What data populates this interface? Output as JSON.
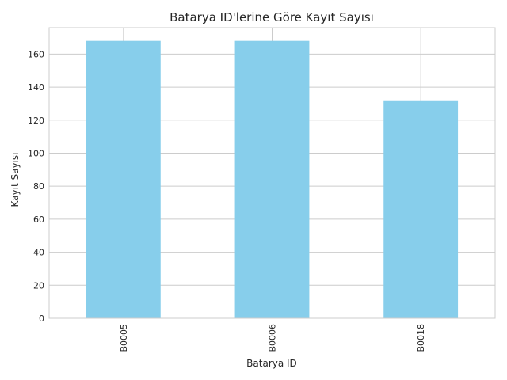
{
  "chart_data": {
    "type": "bar",
    "title": "Batarya ID'lerine Göre Kayıt Sayısı",
    "xlabel": "Batarya ID",
    "ylabel": "Kayıt Sayısı",
    "categories": [
      "B0005",
      "B0006",
      "B0018"
    ],
    "values": [
      168,
      168,
      132
    ],
    "ylim": [
      0,
      176
    ],
    "yticks": [
      0,
      20,
      40,
      60,
      80,
      100,
      120,
      140,
      160
    ],
    "ytick_labels": [
      "0",
      "20",
      "40",
      "60",
      "80",
      "100",
      "120",
      "140",
      "160"
    ],
    "grid": true,
    "legend": "none",
    "bar_color": "#87ceeb",
    "grid_color": "#cccccc"
  }
}
